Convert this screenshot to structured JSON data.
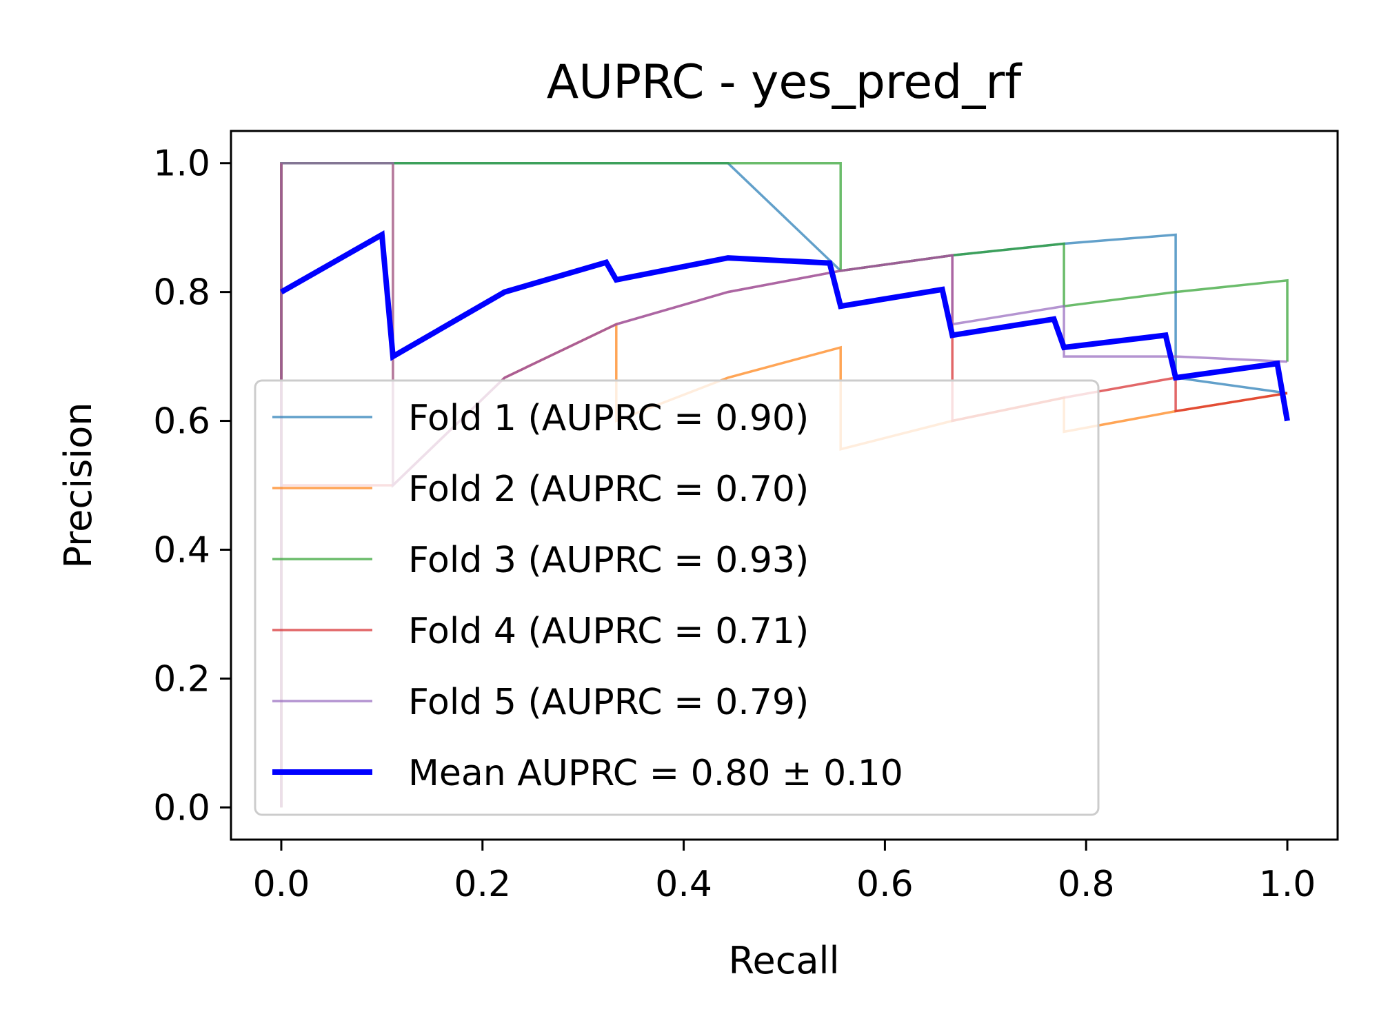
{
  "chart_data": {
    "type": "line",
    "title": "AUPRC - yes_pred_rf",
    "xlabel": "Recall",
    "ylabel": "Precision",
    "xlim": [
      -0.05,
      1.05
    ],
    "ylim": [
      -0.05,
      1.05
    ],
    "xticks": [
      0.0,
      0.2,
      0.4,
      0.6,
      0.8,
      1.0
    ],
    "xtick_labels": [
      "0.0",
      "0.2",
      "0.4",
      "0.6",
      "0.8",
      "1.0"
    ],
    "yticks": [
      0.0,
      0.2,
      0.4,
      0.6,
      0.8,
      1.0
    ],
    "ytick_labels": [
      "0.0",
      "0.2",
      "0.4",
      "0.6",
      "0.8",
      "1.0"
    ],
    "grid": false,
    "legend_position": "lower-left",
    "series": [
      {
        "name": "Fold 1 (AUPRC = 0.90)",
        "color": "#1f77b4",
        "x": [
          0.0,
          0.0,
          0.111,
          0.222,
          0.333,
          0.444,
          0.556,
          0.667,
          0.778,
          0.889,
          0.889,
          1.0
        ],
        "y": [
          0.0,
          1.0,
          1.0,
          1.0,
          1.0,
          1.0,
          0.833,
          0.857,
          0.875,
          0.889,
          0.667,
          0.643
        ]
      },
      {
        "name": "Fold 2 (AUPRC = 0.70)",
        "color": "#ff7f0e",
        "x": [
          0.0,
          0.0,
          0.111,
          0.111,
          0.222,
          0.333,
          0.333,
          0.444,
          0.556,
          0.556,
          0.667,
          0.778,
          0.778,
          0.889,
          1.0
        ],
        "y": [
          0.0,
          1.0,
          1.0,
          0.5,
          0.667,
          0.75,
          0.6,
          0.667,
          0.714,
          0.556,
          0.6,
          0.636,
          0.583,
          0.615,
          0.643
        ]
      },
      {
        "name": "Fold 3 (AUPRC = 0.93)",
        "color": "#2ca02c",
        "x": [
          0.0,
          0.0,
          0.111,
          0.222,
          0.333,
          0.444,
          0.556,
          0.556,
          0.667,
          0.778,
          0.778,
          0.889,
          1.0,
          1.0
        ],
        "y": [
          0.0,
          1.0,
          1.0,
          1.0,
          1.0,
          1.0,
          1.0,
          0.833,
          0.857,
          0.875,
          0.778,
          0.8,
          0.818,
          0.692
        ]
      },
      {
        "name": "Fold 4 (AUPRC = 0.71)",
        "color": "#d62728",
        "x": [
          0.0,
          0.0,
          0.0,
          0.111,
          0.222,
          0.333,
          0.444,
          0.556,
          0.667,
          0.667,
          0.778,
          0.889,
          0.889,
          1.0
        ],
        "y": [
          0.0,
          1.0,
          0.5,
          0.5,
          0.667,
          0.75,
          0.8,
          0.833,
          0.857,
          0.6,
          0.636,
          0.667,
          0.615,
          0.643
        ]
      },
      {
        "name": "Fold 5 (AUPRC = 0.79)",
        "color": "#9467bd",
        "x": [
          0.0,
          0.0,
          0.111,
          0.111,
          0.222,
          0.333,
          0.444,
          0.556,
          0.667,
          0.667,
          0.778,
          0.778,
          0.889,
          1.0
        ],
        "y": [
          0.0,
          1.0,
          1.0,
          0.5,
          0.667,
          0.75,
          0.8,
          0.833,
          0.857,
          0.75,
          0.778,
          0.7,
          0.7,
          0.692
        ]
      },
      {
        "name": "Mean AUPRC = 0.80 ± 0.10",
        "color": "#0000ff",
        "x": [
          0.0,
          0.1,
          0.111,
          0.222,
          0.323,
          0.333,
          0.444,
          0.545,
          0.556,
          0.657,
          0.667,
          0.768,
          0.778,
          0.879,
          0.889,
          0.99,
          1.0
        ],
        "y": [
          0.8,
          0.889,
          0.7,
          0.8,
          0.846,
          0.819,
          0.853,
          0.845,
          0.778,
          0.804,
          0.733,
          0.758,
          0.714,
          0.733,
          0.667,
          0.689,
          0.6
        ]
      }
    ]
  }
}
